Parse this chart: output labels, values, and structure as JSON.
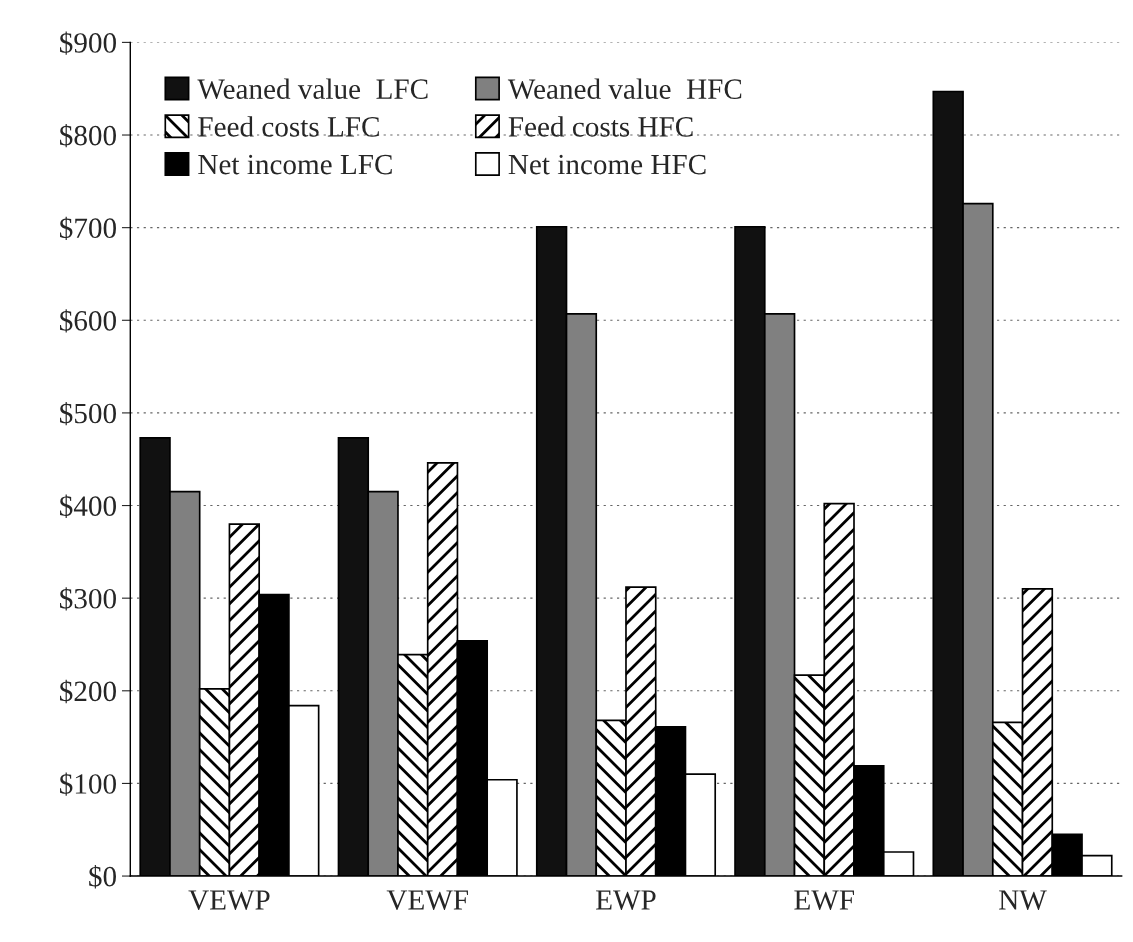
{
  "chart_data": {
    "type": "bar",
    "categories": [
      "VEWP",
      "VEWF",
      "EWP",
      "EWF",
      "NW"
    ],
    "series": [
      {
        "name": "Weaned value  LFC",
        "color": "#111111",
        "values": [
          473,
          473,
          701,
          701,
          847
        ]
      },
      {
        "name": "Weaned value  HFC",
        "color": "#808080",
        "values": [
          415,
          415,
          607,
          607,
          726
        ]
      },
      {
        "name": "Feed costs LFC",
        "color": "#000000",
        "values": [
          202,
          239,
          168,
          217,
          166
        ]
      },
      {
        "name": "Feed costs HFC",
        "color": "#000000",
        "values": [
          380,
          446,
          312,
          402,
          310
        ]
      },
      {
        "name": "Net income LFC",
        "color": "#000000",
        "values": [
          304,
          254,
          161,
          119,
          45
        ]
      },
      {
        "name": "Net income HFC",
        "color": "#ffffff",
        "values": [
          184,
          104,
          110,
          26,
          22
        ]
      }
    ],
    "ylim": [
      0,
      900
    ],
    "yticks": [
      {
        "value": 0,
        "label": "$0"
      },
      {
        "value": 100,
        "label": "$100"
      },
      {
        "value": 200,
        "label": "$200"
      },
      {
        "value": 300,
        "label": "$300"
      },
      {
        "value": 400,
        "label": "$400"
      },
      {
        "value": 500,
        "label": "$500"
      },
      {
        "value": 600,
        "label": "$600"
      },
      {
        "value": 700,
        "label": "$700"
      },
      {
        "value": 800,
        "label": "$800"
      },
      {
        "value": 900,
        "label": "$900"
      }
    ],
    "grid": "y",
    "legend": "top left"
  }
}
